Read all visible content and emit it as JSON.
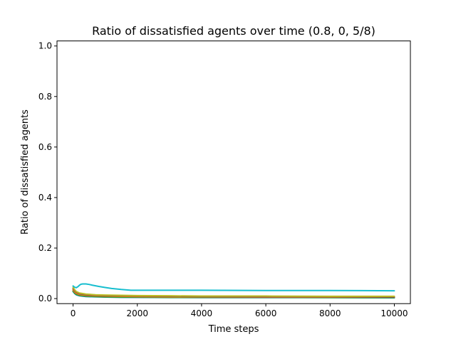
{
  "chart_data": {
    "type": "line",
    "title": "Ratio of dissatisfied agents over time (0.8, 0, 5/8)",
    "xlabel": "Time steps",
    "ylabel": "Ratio of dissatisfied agents",
    "xlim": [
      -500,
      10500
    ],
    "ylim": [
      -0.02,
      1.02
    ],
    "xticks": [
      0,
      2000,
      4000,
      6000,
      8000,
      10000
    ],
    "xtick_labels": [
      "0",
      "2000",
      "4000",
      "6000",
      "8000",
      "10000"
    ],
    "yticks": [
      0.0,
      0.2,
      0.4,
      0.6,
      0.8,
      1.0
    ],
    "ytick_labels": [
      "0.0",
      "0.2",
      "0.4",
      "0.6",
      "0.8",
      "1.0"
    ],
    "grid": false,
    "legend": "none",
    "series": [
      {
        "color": "#17becf",
        "x": [
          0,
          50,
          100,
          150,
          200,
          250,
          300,
          400,
          500,
          600,
          800,
          1000,
          1200,
          1500,
          1800,
          2500,
          4000,
          6000,
          8000,
          10000
        ],
        "y": [
          0.05,
          0.045,
          0.043,
          0.047,
          0.053,
          0.057,
          0.058,
          0.058,
          0.056,
          0.053,
          0.048,
          0.044,
          0.04,
          0.036,
          0.033,
          0.033,
          0.033,
          0.032,
          0.032,
          0.031
        ]
      },
      {
        "color": "#bcbd22",
        "x": [
          0,
          50,
          100,
          200,
          400,
          700,
          1000,
          1500,
          2000,
          3000,
          4000,
          6000,
          8000,
          10000
        ],
        "y": [
          0.045,
          0.035,
          0.028,
          0.022,
          0.018,
          0.015,
          0.014,
          0.013,
          0.012,
          0.011,
          0.01,
          0.01,
          0.009,
          0.009
        ]
      },
      {
        "color": "#8c564b",
        "x": [
          0,
          50,
          100,
          200,
          400,
          700,
          1000,
          1500,
          2000,
          3000,
          4000,
          6000,
          8000,
          10000
        ],
        "y": [
          0.04,
          0.03,
          0.025,
          0.019,
          0.015,
          0.013,
          0.012,
          0.011,
          0.01,
          0.009,
          0.008,
          0.007,
          0.007,
          0.006
        ]
      },
      {
        "color": "#ff7f0e",
        "x": [
          0,
          50,
          100,
          200,
          400,
          700,
          1000,
          1500,
          2000,
          3000,
          4000,
          6000,
          8000,
          10000
        ],
        "y": [
          0.035,
          0.026,
          0.021,
          0.016,
          0.013,
          0.011,
          0.01,
          0.009,
          0.008,
          0.007,
          0.007,
          0.006,
          0.006,
          0.006
        ]
      },
      {
        "color": "#2ca02c",
        "x": [
          0,
          50,
          100,
          200,
          400,
          700,
          1000,
          1500,
          2000,
          3000,
          4000,
          6000,
          8000,
          10000
        ],
        "y": [
          0.03,
          0.022,
          0.017,
          0.013,
          0.01,
          0.008,
          0.007,
          0.006,
          0.006,
          0.005,
          0.005,
          0.005,
          0.004,
          0.004
        ]
      },
      {
        "color": "#1f77b4",
        "x": [
          0,
          50,
          100,
          200,
          400,
          700,
          1000,
          1500,
          2000,
          3000,
          4000,
          6000,
          8000,
          10000
        ],
        "y": [
          0.028,
          0.02,
          0.015,
          0.011,
          0.008,
          0.007,
          0.006,
          0.005,
          0.005,
          0.004,
          0.004,
          0.004,
          0.004,
          0.003
        ]
      },
      {
        "color": "#9467bd",
        "x": [
          0,
          50,
          100,
          200,
          400,
          700,
          1000,
          1500,
          2000,
          3000,
          4000,
          6000,
          8000,
          10000
        ],
        "y": [
          0.032,
          0.023,
          0.018,
          0.013,
          0.01,
          0.008,
          0.007,
          0.006,
          0.005,
          0.005,
          0.004,
          0.004,
          0.004,
          0.004
        ]
      },
      {
        "color": "#7f7f7f",
        "x": [
          0,
          50,
          100,
          200,
          400,
          700,
          1000,
          1500,
          2000,
          3000,
          4000,
          6000,
          8000,
          10000
        ],
        "y": [
          0.038,
          0.028,
          0.022,
          0.017,
          0.013,
          0.011,
          0.01,
          0.009,
          0.008,
          0.008,
          0.007,
          0.007,
          0.006,
          0.006
        ]
      }
    ]
  }
}
